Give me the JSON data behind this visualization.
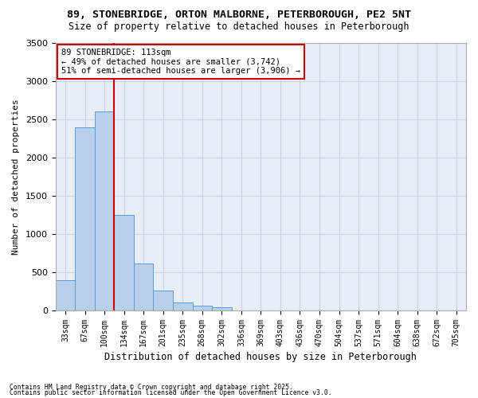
{
  "title_line1": "89, STONEBRIDGE, ORTON MALBORNE, PETERBOROUGH, PE2 5NT",
  "title_line2": "Size of property relative to detached houses in Peterborough",
  "xlabel": "Distribution of detached houses by size in Peterborough",
  "ylabel": "Number of detached properties",
  "footnote1": "Contains HM Land Registry data © Crown copyright and database right 2025.",
  "footnote2": "Contains public sector information licensed under the Open Government Licence v3.0.",
  "bin_labels": [
    "33sqm",
    "67sqm",
    "100sqm",
    "134sqm",
    "167sqm",
    "201sqm",
    "235sqm",
    "268sqm",
    "302sqm",
    "336sqm",
    "369sqm",
    "403sqm",
    "436sqm",
    "470sqm",
    "504sqm",
    "537sqm",
    "571sqm",
    "604sqm",
    "638sqm",
    "672sqm",
    "705sqm"
  ],
  "bar_values": [
    400,
    2400,
    2600,
    1250,
    620,
    260,
    100,
    60,
    40,
    0,
    0,
    0,
    0,
    0,
    0,
    0,
    0,
    0,
    0,
    0,
    0
  ],
  "bar_color": "#b8d0e8",
  "bar_edge_color": "#5b9bd5",
  "grid_color": "#c8d4e8",
  "background_color": "#e8eef8",
  "vline_position": 2.5,
  "vline_color": "#cc0000",
  "annotation_text": "89 STONEBRIDGE: 113sqm\n← 49% of detached houses are smaller (3,742)\n51% of semi-detached houses are larger (3,906) →",
  "annotation_box_edgecolor": "#cc0000",
  "ylim": [
    0,
    3500
  ],
  "yticks": [
    0,
    500,
    1000,
    1500,
    2000,
    2500,
    3000,
    3500
  ]
}
